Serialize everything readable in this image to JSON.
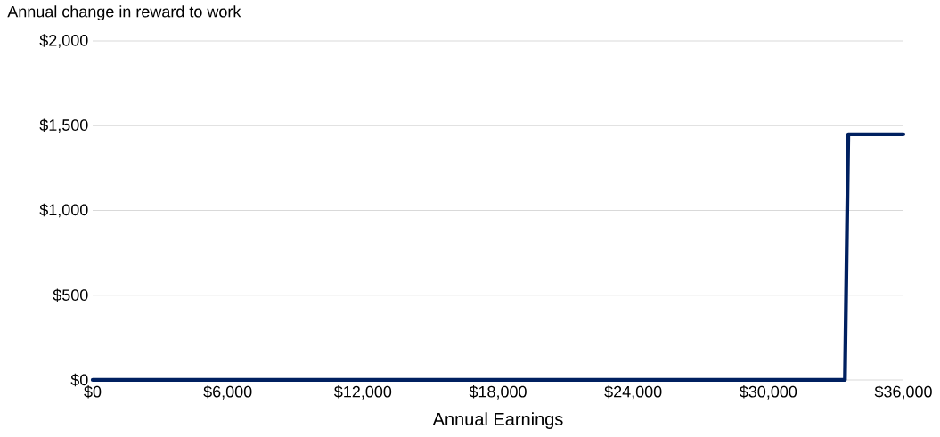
{
  "chart_data": {
    "type": "line",
    "ylabel": "Annual change in reward to work",
    "xlabel": "Annual Earnings",
    "x": [
      0,
      33400,
      33550,
      36000
    ],
    "series": [
      {
        "color": "#002060",
        "values": [
          0,
          0,
          1450,
          1450
        ]
      }
    ],
    "xlim": [
      0,
      36000
    ],
    "xticks": [
      {
        "value": 0,
        "label": "$0"
      },
      {
        "value": 6000,
        "label": "$6,000"
      },
      {
        "value": 12000,
        "label": "$12,000"
      },
      {
        "value": 18000,
        "label": "$18,000"
      },
      {
        "value": 24000,
        "label": "$24,000"
      },
      {
        "value": 30000,
        "label": "$30,000"
      },
      {
        "value": 36000,
        "label": "$36,000"
      }
    ],
    "ylim": [
      0,
      2000
    ],
    "yticks": [
      {
        "value": 0,
        "label": "$0"
      },
      {
        "value": 500,
        "label": "$500"
      },
      {
        "value": 1000,
        "label": "$1,000"
      },
      {
        "value": 1500,
        "label": "$1,500"
      },
      {
        "value": 2000,
        "label": "$2,000"
      }
    ],
    "grid": "y",
    "marker": "none",
    "line_style": "solid"
  }
}
